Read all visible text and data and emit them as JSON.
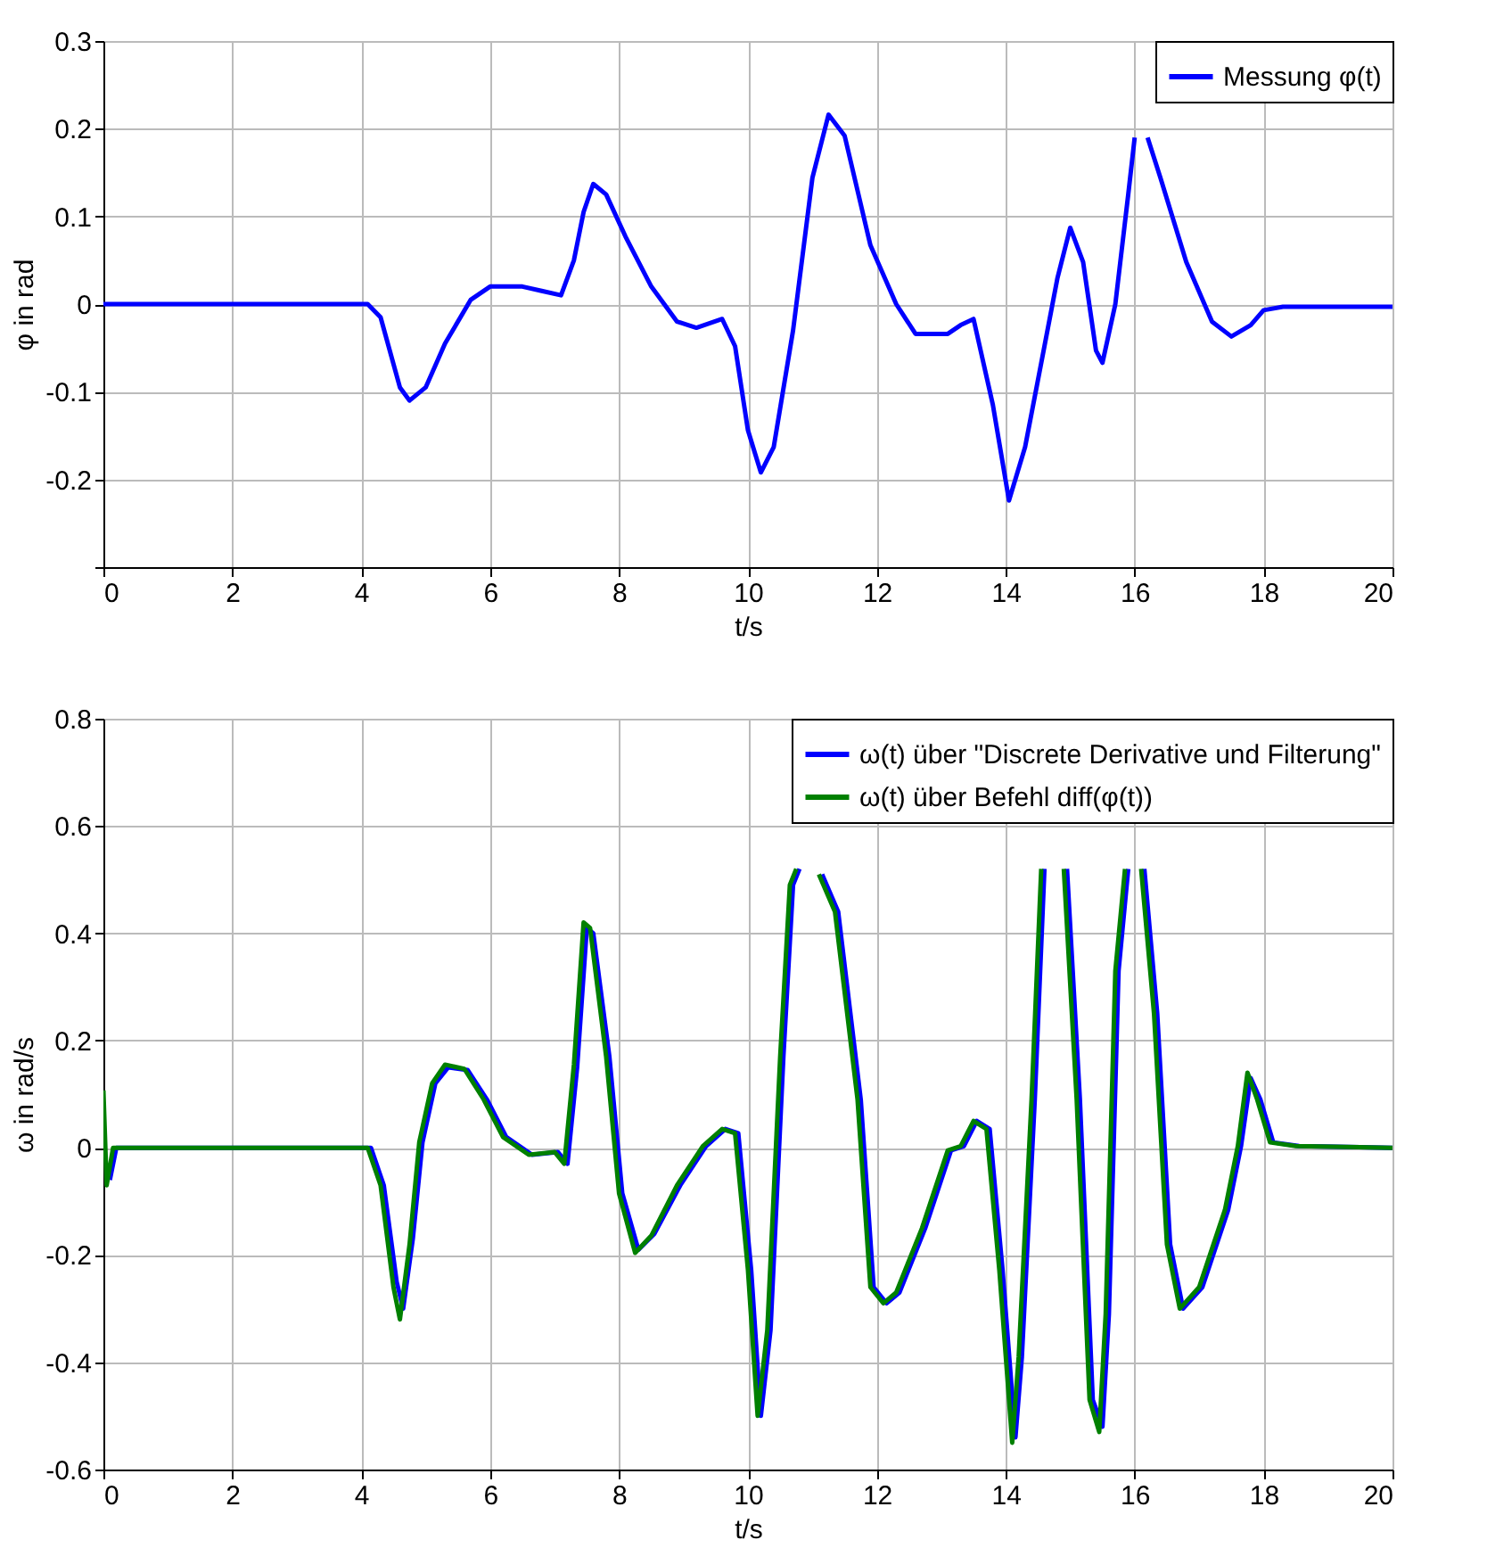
{
  "chart_data": [
    {
      "type": "line",
      "xlabel": "t/s",
      "ylabel": "φ in rad",
      "xlim": [
        0,
        20
      ],
      "ylim": [
        -0.3,
        0.3
      ],
      "xticks": [
        0,
        2,
        4,
        6,
        8,
        10,
        12,
        14,
        16,
        18,
        20
      ],
      "yticks": [
        {
          "value": -0.3,
          "label": null
        },
        -0.2,
        -0.1,
        0,
        0.1,
        0.2,
        0.3
      ],
      "grid": true,
      "legend": "top right",
      "line_style": "solid",
      "series": [
        {
          "name": "Messung φ(t)",
          "color": "#0000ff",
          "x": [
            0,
            4.1,
            4.3,
            4.6,
            4.75,
            5.0,
            5.3,
            5.7,
            6.0,
            6.5,
            6.8,
            7.1,
            7.3,
            7.45,
            7.6,
            7.8,
            8.1,
            8.5,
            8.9,
            9.2,
            9.6,
            9.8,
            10.0,
            10.2,
            10.4,
            10.7,
            11.0,
            11.25,
            11.5,
            11.9,
            12.3,
            12.6,
            13.1,
            13.3,
            13.5,
            13.8,
            14.05,
            14.3,
            14.6,
            14.8,
            15.0,
            15.2,
            15.4,
            15.5,
            15.7,
            15.9,
            16.0,
            16.1,
            16.2,
            16.4,
            16.8,
            17.2,
            17.5,
            17.8,
            18.0,
            18.3,
            20
          ],
          "values": [
            0,
            0,
            -0.015,
            -0.095,
            -0.11,
            -0.095,
            -0.045,
            0.005,
            0.02,
            0.02,
            0.015,
            0.01,
            0.05,
            0.105,
            0.137,
            0.125,
            0.077,
            0.02,
            -0.02,
            -0.027,
            -0.017,
            -0.048,
            -0.144,
            -0.192,
            -0.163,
            -0.03,
            0.144,
            0.216,
            0.192,
            0.067,
            0,
            -0.034,
            -0.034,
            -0.024,
            -0.017,
            -0.115,
            -0.224,
            -0.163,
            -0.048,
            0.029,
            0.087,
            0.048,
            -0.053,
            -0.067,
            0,
            0.125,
            0.19,
            null,
            0.19,
            0.144,
            0.048,
            -0.02,
            -0.037,
            -0.024,
            -0.007,
            -0.003,
            -0.003
          ]
        }
      ]
    },
    {
      "type": "line",
      "xlabel": "t/s",
      "ylabel": "ω in rad/s",
      "xlim": [
        0,
        20
      ],
      "ylim": [
        -0.6,
        0.8
      ],
      "xticks": [
        0,
        2,
        4,
        6,
        8,
        10,
        12,
        14,
        16,
        18,
        20
      ],
      "yticks": [
        -0.6,
        -0.4,
        -0.2,
        0,
        0.2,
        0.4,
        0.6,
        0.8
      ],
      "grid": true,
      "legend": "top right",
      "line_style": "solid",
      "series": [
        {
          "name": "ω(t) über \"Discrete Derivative und Filterung\"",
          "color": "#0000ff",
          "x": [
            0.1,
            0.2,
            4.15,
            4.35,
            4.55,
            4.65,
            4.8,
            4.95,
            5.15,
            5.35,
            5.65,
            5.95,
            6.25,
            6.65,
            7.05,
            7.2,
            7.35,
            7.5,
            7.6,
            7.85,
            8.05,
            8.3,
            8.55,
            8.95,
            9.35,
            9.65,
            9.85,
            10.05,
            10.2,
            10.35,
            10.55,
            10.7,
            10.8,
            10.95,
            11.15,
            11.4,
            11.75,
            11.95,
            12.15,
            12.35,
            12.75,
            13.15,
            13.35,
            13.55,
            13.75,
            13.95,
            14.15,
            14.25,
            14.45,
            14.6,
            14.75,
            14.95,
            15.15,
            15.35,
            15.5,
            15.6,
            15.75,
            15.9,
            16.0,
            16.15,
            16.35,
            16.55,
            16.75,
            17.05,
            17.45,
            17.65,
            17.8,
            17.95,
            18.15,
            18.55,
            20
          ],
          "values": [
            -0.06,
            0,
            0,
            -0.07,
            -0.25,
            -0.3,
            -0.17,
            0.01,
            0.12,
            0.15,
            0.145,
            0.09,
            0.02,
            -0.013,
            -0.008,
            -0.03,
            0.15,
            0.41,
            0.4,
            0.17,
            -0.085,
            -0.19,
            -0.16,
            -0.07,
            0.003,
            0.035,
            0.027,
            -0.228,
            -0.5,
            -0.34,
            0.17,
            0.49,
            0.52,
            null,
            0.51,
            0.44,
            0.09,
            -0.26,
            -0.29,
            -0.27,
            -0.15,
            -0.005,
            0.003,
            0.05,
            0.035,
            -0.228,
            -0.54,
            -0.39,
            0.09,
            0.52,
            null,
            0.52,
            0.09,
            -0.47,
            -0.52,
            -0.31,
            0.33,
            0.52,
            null,
            0.52,
            0.25,
            -0.18,
            -0.3,
            -0.26,
            -0.116,
            0.003,
            0.13,
            0.09,
            0.01,
            0.003,
            0
          ]
        },
        {
          "name": "ω(t) über Befehl diff(φ(t))",
          "color": "#008000",
          "x": [
            0,
            0.05,
            0.15,
            4.1,
            4.3,
            4.5,
            4.6,
            4.75,
            4.9,
            5.1,
            5.3,
            5.6,
            5.9,
            6.2,
            6.6,
            7.0,
            7.15,
            7.3,
            7.45,
            7.55,
            7.8,
            8.0,
            8.25,
            8.5,
            8.9,
            9.3,
            9.6,
            9.8,
            10.0,
            10.15,
            10.3,
            10.5,
            10.65,
            10.75,
            10.9,
            11.1,
            11.35,
            11.7,
            11.9,
            12.1,
            12.3,
            12.7,
            13.1,
            13.3,
            13.5,
            13.7,
            13.9,
            14.1,
            14.2,
            14.4,
            14.55,
            14.7,
            14.9,
            15.1,
            15.3,
            15.45,
            15.55,
            15.7,
            15.85,
            15.95,
            16.1,
            16.3,
            16.5,
            16.7,
            17.0,
            17.4,
            17.6,
            17.75,
            17.9,
            18.1,
            18.5,
            20
          ],
          "values": [
            0.107,
            -0.07,
            0,
            0,
            -0.07,
            -0.26,
            -0.32,
            -0.18,
            0.01,
            0.12,
            0.155,
            0.147,
            0.09,
            0.02,
            -0.013,
            -0.008,
            -0.03,
            0.155,
            0.42,
            0.41,
            0.17,
            -0.085,
            -0.196,
            -0.164,
            -0.07,
            0.003,
            0.035,
            0.027,
            -0.228,
            -0.5,
            -0.34,
            0.17,
            0.49,
            0.52,
            null,
            0.51,
            0.44,
            0.09,
            -0.26,
            -0.29,
            -0.27,
            -0.15,
            -0.005,
            0.003,
            0.05,
            0.035,
            -0.228,
            -0.55,
            -0.39,
            0.09,
            0.52,
            null,
            0.52,
            0.09,
            -0.47,
            -0.53,
            -0.31,
            0.33,
            0.52,
            null,
            0.52,
            0.25,
            -0.18,
            -0.3,
            -0.26,
            -0.116,
            0.003,
            0.14,
            0.09,
            0.01,
            0.003,
            0
          ]
        }
      ]
    }
  ]
}
